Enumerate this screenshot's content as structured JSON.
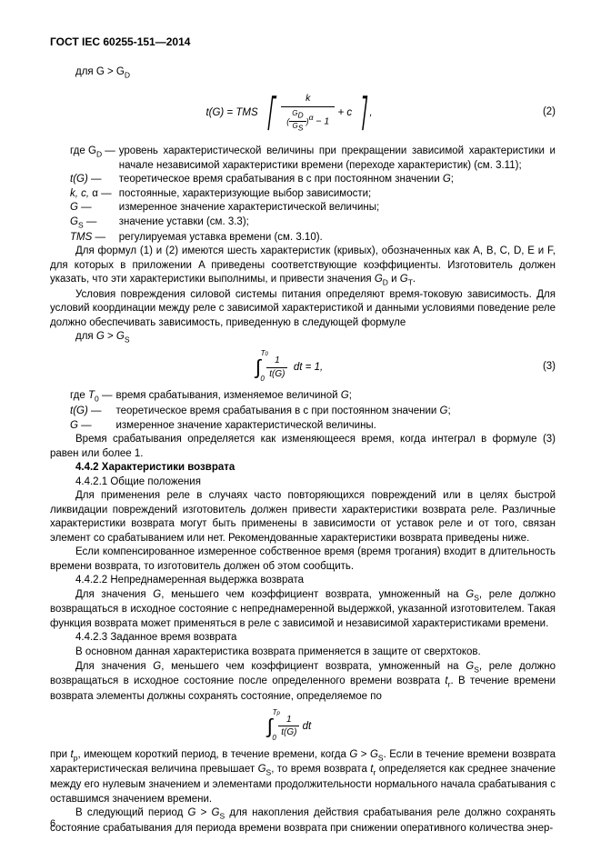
{
  "header": "ГОСТ IEC 60255-151—2014",
  "line1": "для G > G",
  "sub_D": "D",
  "formula2": {
    "lhs": "t(G) = TMS",
    "num": "k",
    "den_a": "G",
    "den_b": "G",
    "sub_S": "S",
    "sub_D": "D",
    "exp": "α",
    "tail": " + c",
    "num_label": "(2)"
  },
  "defs1": [
    [
      "где G<0>D</0> —",
      "уровень характеристической величины при прекращении зависимой характеристики и начале независимой характеристики времени (переходе характеристик) (см. 3.11);"
    ],
    [
      "<1>t(G)</1> —",
      "теоретическое время срабатывания в с при постоянном значении <1>G</1>;"
    ],
    [
      "<1>k, c,</1> α —",
      "постоянные, характеризующие выбор зависимости;"
    ],
    [
      "<1>G</1> —",
      "измеренное значение характеристической величины;"
    ],
    [
      "<1>G</1><0>S</0> —",
      "значение уставки (см. 3.3);"
    ],
    [
      "<1>TMS</1> —",
      "регулируемая уставка времени (см. 3.10)."
    ]
  ],
  "p_formulas": "Для формул (1) и (2) имеются шесть характеристик (кривых), обозначенных как A, B, C, D, E и F, для которых в приложении A приведены соответствующие коэффициенты. Изготовитель должен указать, что эти характеристики выполнимы, и привести значения <1>G</1><0>D</0> и <1>G</1><0>T</0>.",
  "p_cond": "Условия повреждения силовой системы питания определяют время-токовую зависимость. Для условий координации между реле с зависимой характеристикой и данными условиями поведение реле должно обеспечивать зависимость, приведенную в следующей формуле",
  "line_gs": "для <1>G</1> > <1>G</1><0>S</0>",
  "formula3": {
    "tail": "d<1>t</1> = 1,",
    "num_label": "(3)"
  },
  "defs2": [
    [
      "где <1>T</1><0>0</0> —",
      "время срабатывания, изменяемое величиной <1>G</1>;"
    ],
    [
      "<1>t(G)</1> —",
      "теоретическое время срабатывания в с при постоянном значении <1>G</1>;"
    ],
    [
      "<1>G</1> —",
      "измеренное значение характеристической величины."
    ]
  ],
  "p_time": "Время срабатывания определяется как изменяющееся время, когда интеграл в формуле (3) равен или более 1.",
  "h442": "4.4.2 Характеристики возврата",
  "h4421": "4.4.2.1 Общие положения",
  "p4421a": "Для применения реле в случаях часто повторяющихся повреждений или в целях быстрой ликвидации повреждений изготовитель должен привести характеристики возврата реле. Различные характеристики возврата могут быть применены в зависимости от уставок реле и от того, связан элемент со срабатыванием или нет. Рекомендованные характеристики возврата приведены ниже.",
  "p4421b": "Если компенсированное измеренное собственное время (время трогания) входит в длительность времени возврата, то изготовитель должен об этом сообщить.",
  "h4422": "4.4.2.2 Непреднамеренная выдержка возврата",
  "p4422": "Для значения <1>G</1>, меньшего чем коэффициент возврата, умноженный на <1>G</1><0>S</0>, реле должно возвращаться в исходное состояние с непреднамеренной выдержкой, указанной изготовителем. Такая функция возврата может применяться в реле с зависимой и независимой характеристиками времени.",
  "h4423": "4.4.2.3 Заданное время возврата",
  "p4423a": "В основном данная характеристика возврата применяется в защите от сверхтоков.",
  "p4423b": "Для значения <1>G</1>, меньшего чем коэффициент возврата, умноженный на <1>G</1><0>S</0>, реле должно возвращаться в исходное состояние после определенного времени возврата <1>t</1><0>r</0>. В течение времени возврата элементы должны сохранять состояние, определяемое по",
  "p_after_f4": "при <1>t</1><0>p</0>, имеющем короткий период, в течение времени, когда <1>G</1> > <1>G</1><0>S</0>. Если в течение времени возврата характеристическая величина превышает <1>G</1><0>S</0>, то время возврата <1>t</1><0>r</0> определяется как среднее значение между его нулевым значением и элементами продолжительности нормального начала срабатывания с оставшимся значением времени.",
  "p_last": "В следующий период <1>G</1> > <1>G</1><0>S</0> для накопления действия срабатывания реле должно сохранять состояние срабатывания для периода времени возврата при снижении оперативного количества энер-",
  "page_num": "6"
}
